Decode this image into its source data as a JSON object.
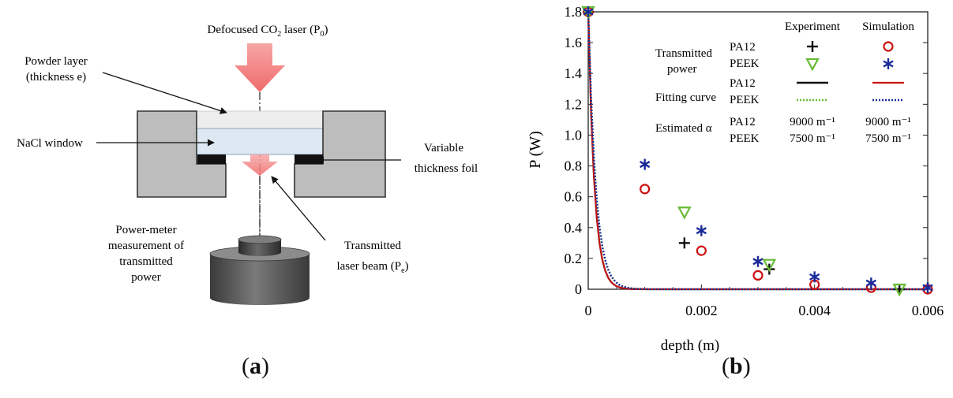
{
  "panel_a": {
    "laser_label_pre": "Defocused CO",
    "laser_label_sub": "2",
    "laser_label_post": " laser (P",
    "laser_label_sub2": "0",
    "laser_label_end": ")",
    "powder_layer_1": "Powder layer",
    "powder_layer_2": "(thickness e)",
    "nacl_window": "NaCl window",
    "foil_1": "Variable",
    "foil_2": "thickness foil",
    "meter_1": "Power-meter",
    "meter_2": "measurement of",
    "meter_3": "transmitted",
    "meter_4": "power",
    "beam_1": "Transmitted",
    "beam_2_pre": "laser beam (P",
    "beam_2_sub": "e",
    "beam_2_end": ")",
    "caption_open": "(",
    "caption_letter": "a",
    "caption_close": ")"
  },
  "panel_b": {
    "caption_open": "(",
    "caption_letter": "b",
    "caption_close": ")",
    "legend": {
      "col_experiment": "Experiment",
      "col_simulation": "Simulation",
      "transmitted_1": "Transmitted",
      "transmitted_2": "power",
      "fitting": "Fitting curve",
      "estimated": "Estimated α",
      "pa12": "PA12",
      "peek": "PEEK",
      "alpha_pa12_exp": "9000 m⁻¹",
      "alpha_pa12_sim": "9000 m⁻¹",
      "alpha_peek_exp": "7500 m⁻¹",
      "alpha_peek_sim": "7500 m⁻¹"
    },
    "colors": {
      "pa12_exp": "#111111",
      "pa12_sim": "#cc1111",
      "peek_exp": "#66bb33",
      "peek_sim": "#1a2a9a"
    }
  },
  "chart_data": {
    "type": "scatter",
    "xlabel": "depth (m)",
    "ylabel": "P (W)",
    "xlim": [
      0,
      0.006
    ],
    "ylim": [
      0,
      1.8
    ],
    "xticks": [
      0,
      0.002,
      0.004,
      0.006
    ],
    "xtick_labels": [
      "0",
      "0.002",
      "0.004",
      "0.006"
    ],
    "yticks": [
      0,
      0.2,
      0.4,
      0.6,
      0.8,
      1.0,
      1.2,
      1.4,
      1.6,
      1.8
    ],
    "ytick_labels": [
      "0",
      "0.2",
      "0.4",
      "0.6",
      "0.8",
      "1.0",
      "1.2",
      "1.4",
      "1.6",
      "1.8"
    ],
    "series": [
      {
        "name": "PA12",
        "kind": "experiment",
        "marker": "plus",
        "x": [
          0,
          0.0017,
          0.0032,
          0.0055
        ],
        "y": [
          1.8,
          0.3,
          0.13,
          0.0
        ]
      },
      {
        "name": "PA12",
        "kind": "simulation",
        "marker": "circle",
        "x": [
          0,
          0.001,
          0.002,
          0.003,
          0.004,
          0.005,
          0.006
        ],
        "y": [
          1.8,
          0.65,
          0.25,
          0.09,
          0.03,
          0.01,
          0.0
        ]
      },
      {
        "name": "PEEK",
        "kind": "experiment",
        "marker": "triangle-down",
        "x": [
          0,
          0.0017,
          0.0032,
          0.0055
        ],
        "y": [
          1.8,
          0.5,
          0.16,
          0.0
        ]
      },
      {
        "name": "PEEK",
        "kind": "simulation",
        "marker": "star",
        "x": [
          0,
          0.001,
          0.002,
          0.003,
          0.004,
          0.005,
          0.006
        ],
        "y": [
          1.8,
          0.81,
          0.38,
          0.18,
          0.08,
          0.04,
          0.01
        ]
      }
    ],
    "fits": [
      {
        "name": "PA12",
        "kind": "experiment",
        "alpha": 9000,
        "p0": 1.8
      },
      {
        "name": "PA12",
        "kind": "simulation",
        "alpha": 9000,
        "p0": 1.8
      },
      {
        "name": "PEEK",
        "kind": "experiment",
        "alpha": 7500,
        "p0": 1.8
      },
      {
        "name": "PEEK",
        "kind": "simulation",
        "alpha": 7500,
        "p0": 1.8
      }
    ],
    "grid": false
  }
}
